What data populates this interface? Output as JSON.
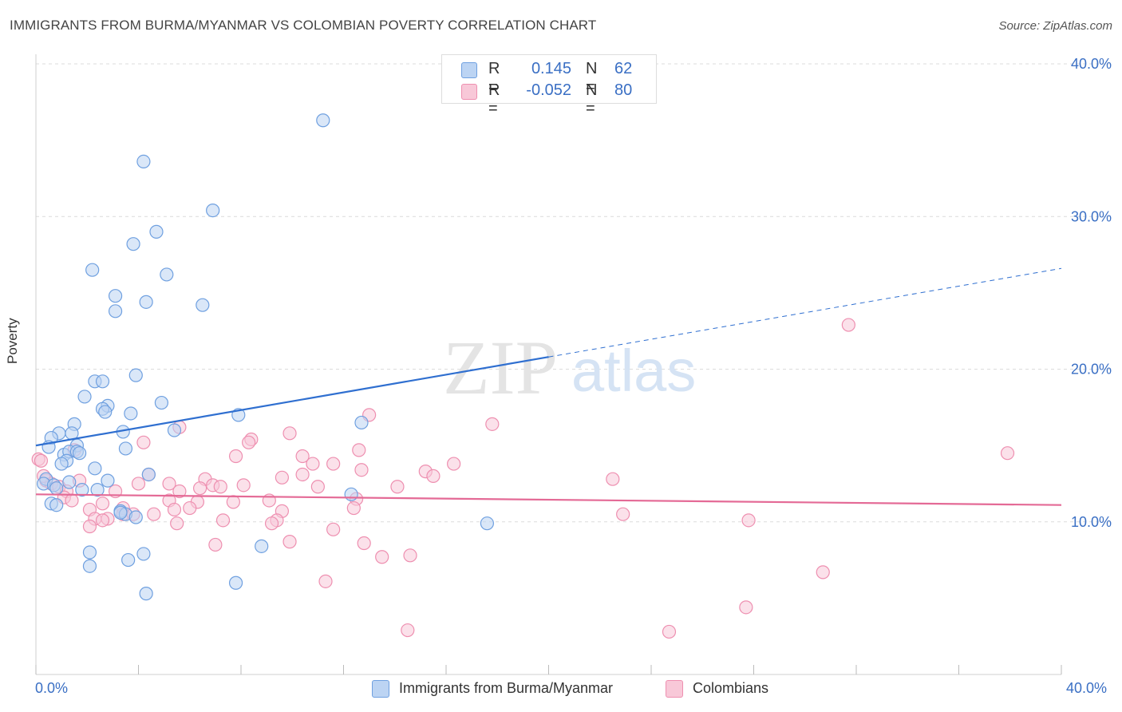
{
  "title": "IMMIGRANTS FROM BURMA/MYANMAR VS COLOMBIAN POVERTY CORRELATION CHART",
  "source": "Source: ZipAtlas.com",
  "watermark": {
    "zip": "ZIP",
    "atlas": "atlas"
  },
  "legend": {
    "rows": [
      {
        "r_label": "R =",
        "r_value": "0.145",
        "n_label": "N =",
        "n_value": "62",
        "color": "#6fa0e0"
      },
      {
        "r_label": "R =",
        "r_value": "-0.052",
        "n_label": "N =",
        "n_value": "80",
        "color": "#ee8fb0"
      }
    ]
  },
  "bottom_legend": {
    "series1": "Immigrants from Burma/Myanmar",
    "series2": "Colombians"
  },
  "axis": {
    "x_min_label": "0.0%",
    "x_max_label": "40.0%",
    "y_label": "Poverty"
  },
  "colors": {
    "blue_fill": "#bcd4f3",
    "blue_stroke": "#6fa0e0",
    "blue_line": "#2f6fd0",
    "pink_fill": "#f8c8d8",
    "pink_stroke": "#ee8fb0",
    "pink_line": "#e46a96",
    "grid": "#dcdcdc",
    "tick_text": "#3a6fc4"
  },
  "chart_data": {
    "type": "scatter",
    "title": "IMMIGRANTS FROM BURMA/MYANMAR VS COLOMBIAN POVERTY CORRELATION CHART",
    "xlabel": "",
    "ylabel": "Poverty",
    "xlim": [
      0,
      40
    ],
    "ylim": [
      0,
      41
    ],
    "y_ticks": [
      {
        "value": 10,
        "label": "10.0%"
      },
      {
        "value": 20,
        "label": "20.0%"
      },
      {
        "value": 30,
        "label": "30.0%"
      },
      {
        "value": 40,
        "label": "40.0%"
      }
    ],
    "series": [
      {
        "name": "Immigrants from Burma/Myanmar",
        "color": "blue",
        "trend": {
          "x0": 0,
          "y0": 15.0,
          "x1": 20,
          "y1": 20.8,
          "x_dash_end": 40,
          "y_dash_end": 26.6
        },
        "points": [
          [
            11.2,
            36.3
          ],
          [
            4.2,
            33.6
          ],
          [
            6.9,
            30.4
          ],
          [
            4.7,
            29.0
          ],
          [
            3.8,
            28.2
          ],
          [
            2.2,
            26.5
          ],
          [
            5.1,
            26.2
          ],
          [
            3.1,
            24.8
          ],
          [
            4.3,
            24.4
          ],
          [
            6.5,
            24.2
          ],
          [
            3.1,
            23.8
          ],
          [
            3.9,
            19.6
          ],
          [
            2.3,
            19.2
          ],
          [
            2.6,
            19.2
          ],
          [
            1.9,
            18.2
          ],
          [
            4.9,
            17.8
          ],
          [
            2.8,
            17.6
          ],
          [
            2.6,
            17.4
          ],
          [
            2.7,
            17.2
          ],
          [
            3.7,
            17.1
          ],
          [
            7.9,
            17.0
          ],
          [
            12.7,
            16.5
          ],
          [
            1.5,
            16.4
          ],
          [
            5.4,
            16.0
          ],
          [
            3.4,
            15.9
          ],
          [
            0.9,
            15.8
          ],
          [
            1.4,
            15.8
          ],
          [
            0.6,
            15.5
          ],
          [
            1.6,
            15.0
          ],
          [
            0.5,
            14.9
          ],
          [
            3.5,
            14.8
          ],
          [
            1.1,
            14.4
          ],
          [
            1.3,
            14.6
          ],
          [
            1.6,
            14.6
          ],
          [
            1.7,
            14.5
          ],
          [
            1.2,
            14.0
          ],
          [
            1.0,
            13.8
          ],
          [
            2.3,
            13.5
          ],
          [
            4.4,
            13.1
          ],
          [
            0.4,
            12.8
          ],
          [
            0.3,
            12.5
          ],
          [
            0.7,
            12.4
          ],
          [
            1.3,
            12.6
          ],
          [
            2.8,
            12.7
          ],
          [
            0.8,
            12.2
          ],
          [
            1.8,
            12.1
          ],
          [
            2.4,
            12.1
          ],
          [
            12.3,
            11.8
          ],
          [
            0.6,
            11.2
          ],
          [
            0.8,
            11.1
          ],
          [
            3.3,
            10.7
          ],
          [
            3.5,
            10.5
          ],
          [
            3.3,
            10.6
          ],
          [
            3.9,
            10.3
          ],
          [
            17.6,
            9.9
          ],
          [
            8.8,
            8.4
          ],
          [
            2.1,
            8.0
          ],
          [
            4.2,
            7.9
          ],
          [
            3.6,
            7.5
          ],
          [
            2.1,
            7.1
          ],
          [
            7.8,
            6.0
          ],
          [
            4.3,
            5.3
          ]
        ]
      },
      {
        "name": "Colombians",
        "color": "pink",
        "trend": {
          "x0": 0,
          "y0": 11.8,
          "x1": 40,
          "y1": 11.1
        },
        "points": [
          [
            31.7,
            22.9
          ],
          [
            13.0,
            17.0
          ],
          [
            17.8,
            16.4
          ],
          [
            5.6,
            16.2
          ],
          [
            9.9,
            15.8
          ],
          [
            8.4,
            15.4
          ],
          [
            8.3,
            15.2
          ],
          [
            4.2,
            15.2
          ],
          [
            12.6,
            14.7
          ],
          [
            0.1,
            14.1
          ],
          [
            10.4,
            14.3
          ],
          [
            7.8,
            14.3
          ],
          [
            37.9,
            14.5
          ],
          [
            1.5,
            14.7
          ],
          [
            10.8,
            13.8
          ],
          [
            11.6,
            13.8
          ],
          [
            16.3,
            13.8
          ],
          [
            12.7,
            13.4
          ],
          [
            15.2,
            13.3
          ],
          [
            10.4,
            13.1
          ],
          [
            4.4,
            13.1
          ],
          [
            15.5,
            13.0
          ],
          [
            9.6,
            12.9
          ],
          [
            22.5,
            12.8
          ],
          [
            6.6,
            12.8
          ],
          [
            1.7,
            12.7
          ],
          [
            0.4,
            12.7
          ],
          [
            0.6,
            12.5
          ],
          [
            0.9,
            12.3
          ],
          [
            4.0,
            12.5
          ],
          [
            5.2,
            12.5
          ],
          [
            6.9,
            12.4
          ],
          [
            8.1,
            12.4
          ],
          [
            7.2,
            12.3
          ],
          [
            11.0,
            12.3
          ],
          [
            14.1,
            12.3
          ],
          [
            6.4,
            12.2
          ],
          [
            5.6,
            12.0
          ],
          [
            3.1,
            12.0
          ],
          [
            1.2,
            12.0
          ],
          [
            1.1,
            11.6
          ],
          [
            1.4,
            11.4
          ],
          [
            5.2,
            11.4
          ],
          [
            6.3,
            11.3
          ],
          [
            7.7,
            11.3
          ],
          [
            9.1,
            11.4
          ],
          [
            12.5,
            11.5
          ],
          [
            2.6,
            11.2
          ],
          [
            2.1,
            10.8
          ],
          [
            3.4,
            10.9
          ],
          [
            5.4,
            10.8
          ],
          [
            6.0,
            10.9
          ],
          [
            12.4,
            10.9
          ],
          [
            9.6,
            10.7
          ],
          [
            3.4,
            10.5
          ],
          [
            3.8,
            10.5
          ],
          [
            4.6,
            10.5
          ],
          [
            2.8,
            10.2
          ],
          [
            2.3,
            10.2
          ],
          [
            2.6,
            10.1
          ],
          [
            7.3,
            10.1
          ],
          [
            9.4,
            10.1
          ],
          [
            9.2,
            9.9
          ],
          [
            5.5,
            9.9
          ],
          [
            2.1,
            9.7
          ],
          [
            22.9,
            10.5
          ],
          [
            27.8,
            10.1
          ],
          [
            11.6,
            9.5
          ],
          [
            9.9,
            8.7
          ],
          [
            7.0,
            8.5
          ],
          [
            12.8,
            8.6
          ],
          [
            13.5,
            7.7
          ],
          [
            14.6,
            7.8
          ],
          [
            30.7,
            6.7
          ],
          [
            11.3,
            6.1
          ],
          [
            27.7,
            4.4
          ],
          [
            14.5,
            2.9
          ],
          [
            24.7,
            2.8
          ],
          [
            0.2,
            14.0
          ],
          [
            0.3,
            13.0
          ]
        ]
      }
    ]
  }
}
